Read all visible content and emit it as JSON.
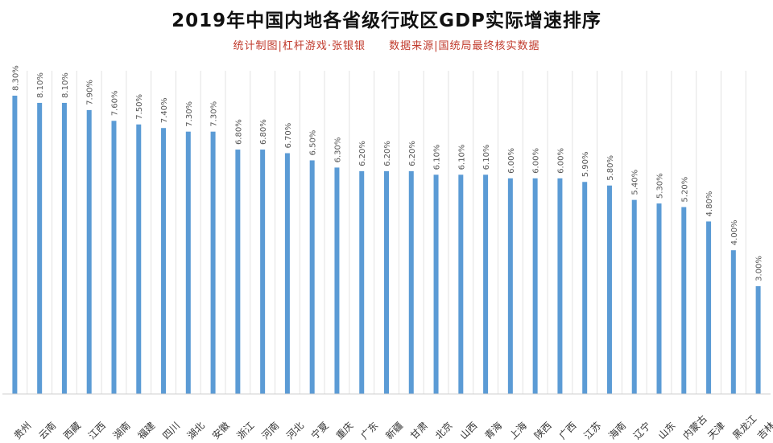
{
  "title": "2019年中国内地各省级行政区GDP实际增速排序",
  "credit": "统计制图|杠杆游戏·张银银",
  "source": "数据来源|国统局最终核实数据",
  "colors": {
    "bar": "#5b9bd5",
    "title": "#111111",
    "subtitle": "#c0392b"
  },
  "chart_data": {
    "type": "bar",
    "title": "2019年中国内地各省级行政区GDP实际增速排序",
    "categories": [
      "贵州",
      "云南",
      "西藏",
      "江西",
      "湖南",
      "福建",
      "四川",
      "湖北",
      "安徽",
      "浙江",
      "河南",
      "河北",
      "宁夏",
      "重庆",
      "广东",
      "新疆",
      "甘肃",
      "北京",
      "山西",
      "青海",
      "上海",
      "陕西",
      "广西",
      "江苏",
      "海南",
      "辽宁",
      "山东",
      "内蒙古",
      "天津",
      "黑龙江",
      "吉林"
    ],
    "values": [
      8.3,
      8.1,
      8.1,
      7.9,
      7.6,
      7.5,
      7.4,
      7.3,
      7.3,
      6.8,
      6.8,
      6.7,
      6.5,
      6.3,
      6.2,
      6.2,
      6.2,
      6.1,
      6.1,
      6.1,
      6.0,
      6.0,
      6.0,
      5.9,
      5.8,
      5.4,
      5.3,
      5.2,
      4.8,
      4.0,
      3.0
    ],
    "value_labels": [
      "8.30%",
      "8.10%",
      "8.10%",
      "7.90%",
      "7.60%",
      "7.50%",
      "7.40%",
      "7.30%",
      "7.30%",
      "6.80%",
      "6.80%",
      "6.70%",
      "6.50%",
      "6.30%",
      "6.20%",
      "6.20%",
      "6.20%",
      "6.10%",
      "6.10%",
      "6.10%",
      "6.00%",
      "6.00%",
      "6.00%",
      "5.90%",
      "5.80%",
      "5.40%",
      "5.30%",
      "5.20%",
      "4.80%",
      "4.00%",
      "3.00%"
    ],
    "ylim": [
      0,
      8.3
    ],
    "grid": true,
    "xlabel": "",
    "ylabel": ""
  }
}
